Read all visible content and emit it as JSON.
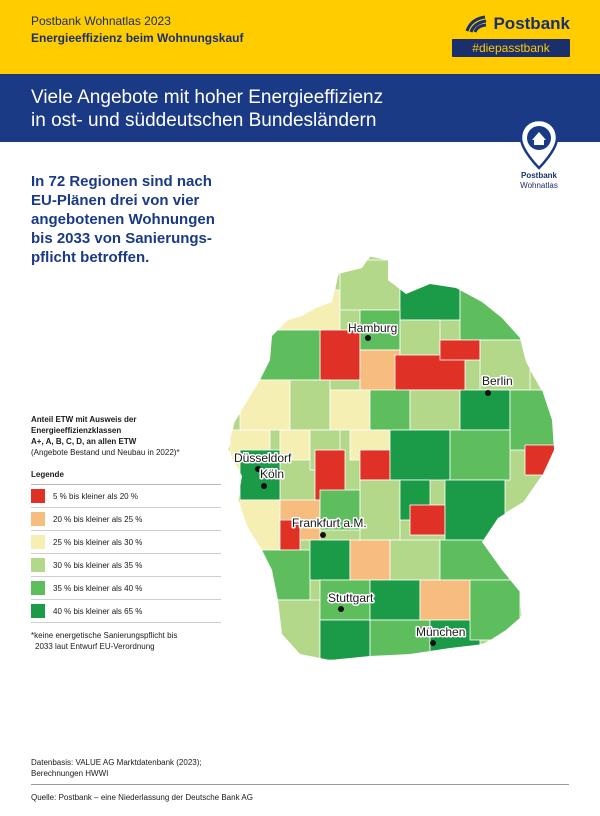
{
  "header": {
    "line1": "Postbank Wohnatlas 2023",
    "line2": "Energieeffizienz beim Wohnungskauf"
  },
  "brand": {
    "name": "Postbank",
    "tagline": "#diepasstbank"
  },
  "banner": {
    "line1": "Viele Angebote mit hoher Energieeffizienz",
    "line2": "in ost- und süddeutschen Bundesländern"
  },
  "badge": {
    "line1": "Postbank",
    "line2": "Wohnatlas"
  },
  "lead": [
    "In 72 Regionen sind nach",
    "EU-Plänen drei von vier",
    "angebotenen Wohnungen",
    "bis 2033 von Sanierungs-",
    "pflicht betroffen."
  ],
  "legend": {
    "heading": [
      "Anteil ETW mit Ausweis der",
      "Energieeffizienzklassen",
      "A+, A, B, C, D, an allen ETW"
    ],
    "note": "(Angebote Bestand und Neubau in 2022)*",
    "title": "Legende",
    "items": [
      {
        "label": "5 % bis kleiner als 20 %",
        "color": "#e03127"
      },
      {
        "label": "20 % bis kleiner als 25 %",
        "color": "#f7bd7f"
      },
      {
        "label": "25 % bis kleiner als 30 %",
        "color": "#f6efb4"
      },
      {
        "label": "30 % bis kleiner als 35 %",
        "color": "#b3d889"
      },
      {
        "label": "35 % bis kleiner als 40 %",
        "color": "#5ebd5c"
      },
      {
        "label": "40 % bis kleiner als 65 %",
        "color": "#1b9a47"
      }
    ]
  },
  "footnote": [
    "*keine energetische Sanierungspflicht bis",
    "2033 laut Entwurf EU-Verordnung"
  ],
  "cities": {
    "hamburg": "Hamburg",
    "berlin": "Berlin",
    "duesseldorf": "Düsseldorf",
    "koeln": "Köln",
    "frankfurt": "Frankfurt a.M.",
    "stuttgart": "Stuttgart",
    "muenchen": "München"
  },
  "basis": [
    "Datenbasis: VALUE AG Marktdatenbank (2023);",
    "Berechnungen HWWI"
  ],
  "source": "Quelle: Postbank – eine Niederlassung der Deutsche Bank AG"
}
